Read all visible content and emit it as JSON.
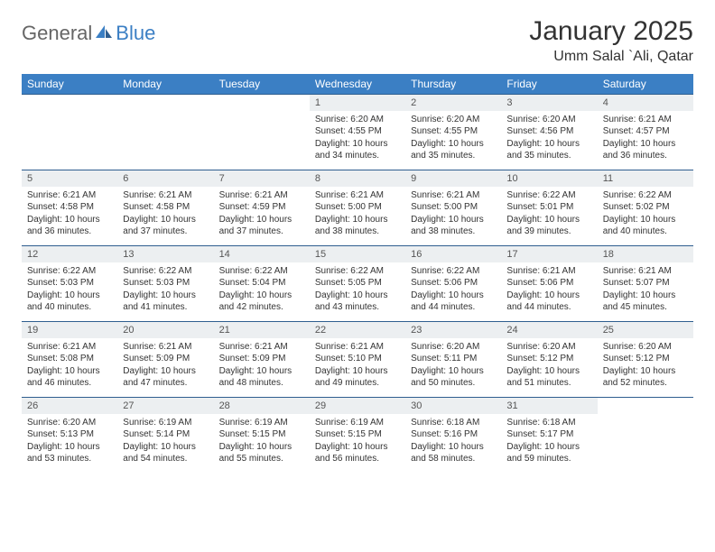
{
  "brand": {
    "part1": "General",
    "part2": "Blue"
  },
  "title": "January 2025",
  "location": "Umm Salal `Ali, Qatar",
  "colors": {
    "header_bg": "#3b7fc4",
    "header_text": "#ffffff",
    "daynum_bg": "#eceff1",
    "row_border": "#2f5e8f",
    "logo_gray": "#666666",
    "logo_blue": "#3b7fc4",
    "body_text": "#333333",
    "page_bg": "#ffffff"
  },
  "weekdays": [
    "Sunday",
    "Monday",
    "Tuesday",
    "Wednesday",
    "Thursday",
    "Friday",
    "Saturday"
  ],
  "weeks": [
    [
      null,
      null,
      null,
      {
        "d": "1",
        "sr": "6:20 AM",
        "ss": "4:55 PM",
        "dl": "10 hours and 34 minutes."
      },
      {
        "d": "2",
        "sr": "6:20 AM",
        "ss": "4:55 PM",
        "dl": "10 hours and 35 minutes."
      },
      {
        "d": "3",
        "sr": "6:20 AM",
        "ss": "4:56 PM",
        "dl": "10 hours and 35 minutes."
      },
      {
        "d": "4",
        "sr": "6:21 AM",
        "ss": "4:57 PM",
        "dl": "10 hours and 36 minutes."
      }
    ],
    [
      {
        "d": "5",
        "sr": "6:21 AM",
        "ss": "4:58 PM",
        "dl": "10 hours and 36 minutes."
      },
      {
        "d": "6",
        "sr": "6:21 AM",
        "ss": "4:58 PM",
        "dl": "10 hours and 37 minutes."
      },
      {
        "d": "7",
        "sr": "6:21 AM",
        "ss": "4:59 PM",
        "dl": "10 hours and 37 minutes."
      },
      {
        "d": "8",
        "sr": "6:21 AM",
        "ss": "5:00 PM",
        "dl": "10 hours and 38 minutes."
      },
      {
        "d": "9",
        "sr": "6:21 AM",
        "ss": "5:00 PM",
        "dl": "10 hours and 38 minutes."
      },
      {
        "d": "10",
        "sr": "6:22 AM",
        "ss": "5:01 PM",
        "dl": "10 hours and 39 minutes."
      },
      {
        "d": "11",
        "sr": "6:22 AM",
        "ss": "5:02 PM",
        "dl": "10 hours and 40 minutes."
      }
    ],
    [
      {
        "d": "12",
        "sr": "6:22 AM",
        "ss": "5:03 PM",
        "dl": "10 hours and 40 minutes."
      },
      {
        "d": "13",
        "sr": "6:22 AM",
        "ss": "5:03 PM",
        "dl": "10 hours and 41 minutes."
      },
      {
        "d": "14",
        "sr": "6:22 AM",
        "ss": "5:04 PM",
        "dl": "10 hours and 42 minutes."
      },
      {
        "d": "15",
        "sr": "6:22 AM",
        "ss": "5:05 PM",
        "dl": "10 hours and 43 minutes."
      },
      {
        "d": "16",
        "sr": "6:22 AM",
        "ss": "5:06 PM",
        "dl": "10 hours and 44 minutes."
      },
      {
        "d": "17",
        "sr": "6:21 AM",
        "ss": "5:06 PM",
        "dl": "10 hours and 44 minutes."
      },
      {
        "d": "18",
        "sr": "6:21 AM",
        "ss": "5:07 PM",
        "dl": "10 hours and 45 minutes."
      }
    ],
    [
      {
        "d": "19",
        "sr": "6:21 AM",
        "ss": "5:08 PM",
        "dl": "10 hours and 46 minutes."
      },
      {
        "d": "20",
        "sr": "6:21 AM",
        "ss": "5:09 PM",
        "dl": "10 hours and 47 minutes."
      },
      {
        "d": "21",
        "sr": "6:21 AM",
        "ss": "5:09 PM",
        "dl": "10 hours and 48 minutes."
      },
      {
        "d": "22",
        "sr": "6:21 AM",
        "ss": "5:10 PM",
        "dl": "10 hours and 49 minutes."
      },
      {
        "d": "23",
        "sr": "6:20 AM",
        "ss": "5:11 PM",
        "dl": "10 hours and 50 minutes."
      },
      {
        "d": "24",
        "sr": "6:20 AM",
        "ss": "5:12 PM",
        "dl": "10 hours and 51 minutes."
      },
      {
        "d": "25",
        "sr": "6:20 AM",
        "ss": "5:12 PM",
        "dl": "10 hours and 52 minutes."
      }
    ],
    [
      {
        "d": "26",
        "sr": "6:20 AM",
        "ss": "5:13 PM",
        "dl": "10 hours and 53 minutes."
      },
      {
        "d": "27",
        "sr": "6:19 AM",
        "ss": "5:14 PM",
        "dl": "10 hours and 54 minutes."
      },
      {
        "d": "28",
        "sr": "6:19 AM",
        "ss": "5:15 PM",
        "dl": "10 hours and 55 minutes."
      },
      {
        "d": "29",
        "sr": "6:19 AM",
        "ss": "5:15 PM",
        "dl": "10 hours and 56 minutes."
      },
      {
        "d": "30",
        "sr": "6:18 AM",
        "ss": "5:16 PM",
        "dl": "10 hours and 58 minutes."
      },
      {
        "d": "31",
        "sr": "6:18 AM",
        "ss": "5:17 PM",
        "dl": "10 hours and 59 minutes."
      },
      null
    ]
  ],
  "labels": {
    "sunrise": "Sunrise:",
    "sunset": "Sunset:",
    "daylight": "Daylight:"
  }
}
